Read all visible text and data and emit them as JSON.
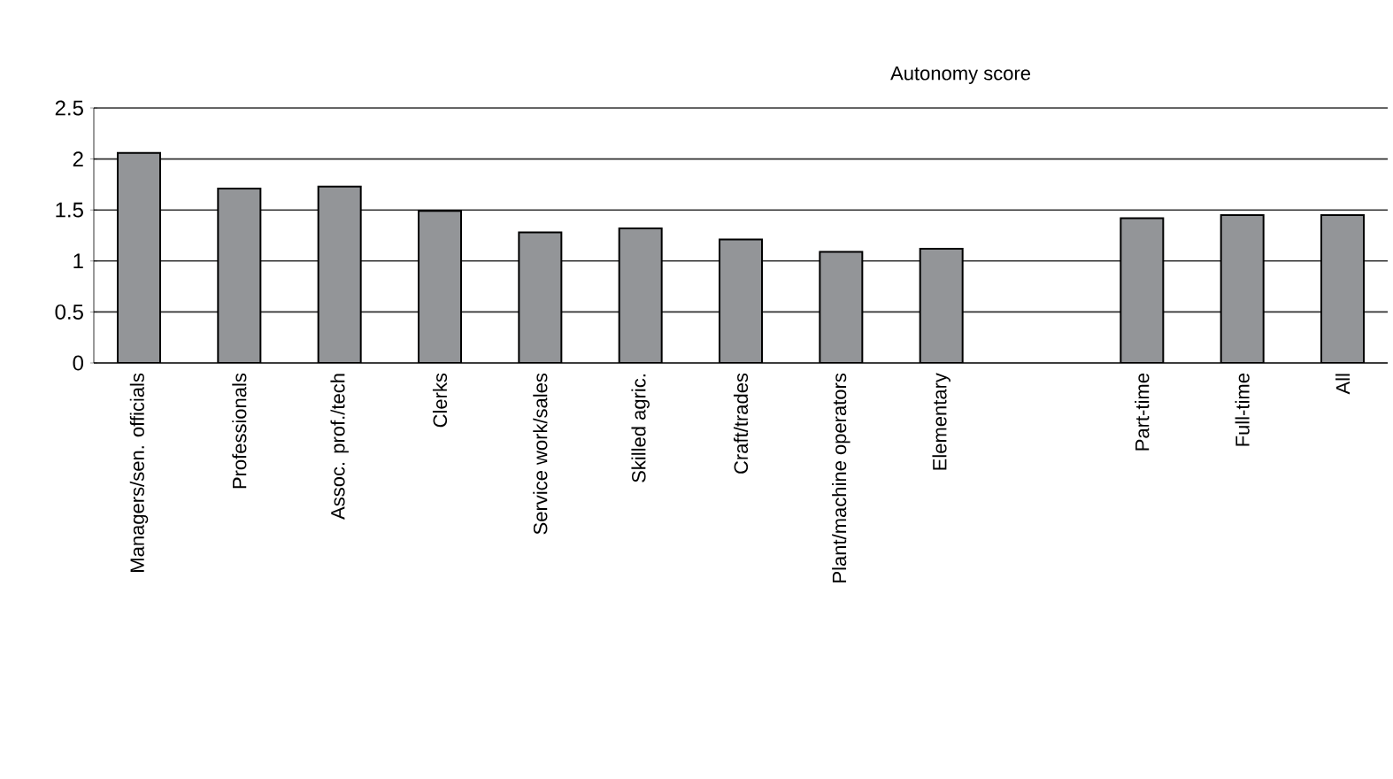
{
  "chart_data": {
    "type": "bar",
    "title": "Autonomy score",
    "categories": [
      "Managers/sen. officials",
      "Professionals",
      "Assoc. prof./tech",
      "Clerks",
      "Service work/sales",
      "Skilled agric.",
      "Craft/trades",
      "Plant/machine operators",
      "Elementary",
      null,
      "Part-time",
      "Full-time",
      "All"
    ],
    "values": [
      2.06,
      1.71,
      1.73,
      1.49,
      1.28,
      1.32,
      1.21,
      1.09,
      1.12,
      null,
      1.42,
      1.45,
      1.45
    ],
    "color": "#939598",
    "ylim": [
      0,
      2.5
    ],
    "yticks": [
      0,
      0.5,
      1,
      1.5,
      2,
      2.5
    ],
    "grid": "y"
  }
}
